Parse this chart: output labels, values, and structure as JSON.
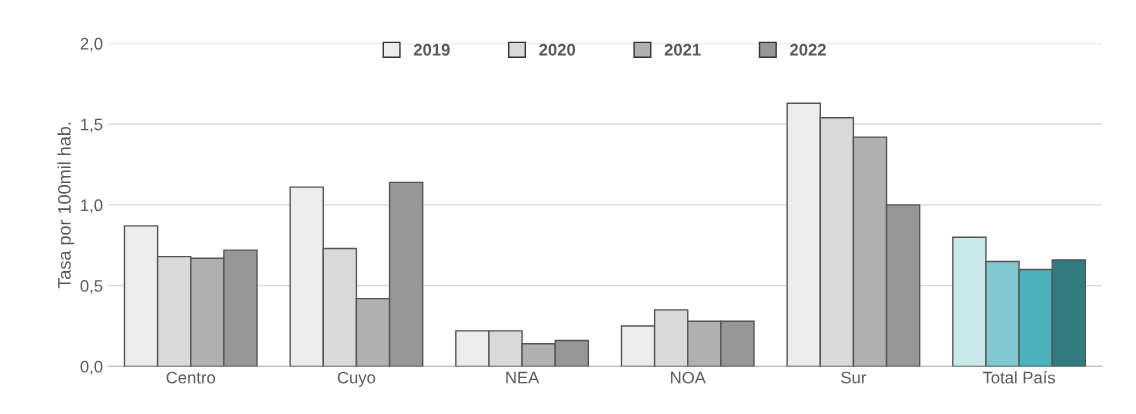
{
  "chart_data": {
    "type": "bar",
    "ylabel": "Tasa por 100mil hab.",
    "categories": [
      "Centro",
      "Cuyo",
      "NEA",
      "NOA",
      "Sur",
      "Total País"
    ],
    "series": [
      {
        "name": "2019",
        "color": "#ececec",
        "colors": [
          "#ececec",
          "#ececec",
          "#ececec",
          "#ececec",
          "#ececec",
          "#c9e8ea"
        ],
        "values": [
          0.87,
          1.11,
          0.22,
          0.25,
          1.63,
          0.8
        ]
      },
      {
        "name": "2020",
        "color": "#d9d9d9",
        "colors": [
          "#d9d9d9",
          "#d9d9d9",
          "#d9d9d9",
          "#d9d9d9",
          "#d9d9d9",
          "#80c8cf"
        ],
        "values": [
          0.68,
          0.73,
          0.22,
          0.35,
          1.54,
          0.65
        ]
      },
      {
        "name": "2021",
        "color": "#b0b0b0",
        "colors": [
          "#b0b0b0",
          "#b0b0b0",
          "#b0b0b0",
          "#b0b0b0",
          "#b0b0b0",
          "#4bb2bb"
        ],
        "values": [
          0.67,
          0.42,
          0.14,
          0.28,
          1.42,
          0.6
        ]
      },
      {
        "name": "2022",
        "color": "#969696",
        "colors": [
          "#969696",
          "#969696",
          "#969696",
          "#969696",
          "#969696",
          "#317b80"
        ],
        "values": [
          0.72,
          1.14,
          0.16,
          0.28,
          1.0,
          0.66
        ]
      }
    ],
    "ylim": [
      0,
      2.0
    ],
    "yticks": [
      {
        "value": 0,
        "label": "0,0"
      },
      {
        "value": 0.5,
        "label": "0,5"
      },
      {
        "value": 1.0,
        "label": "1,0"
      },
      {
        "value": 1.5,
        "label": "1,5"
      },
      {
        "value": 2.0,
        "label": "2,0"
      }
    ],
    "grid": "y",
    "legend": "top"
  }
}
